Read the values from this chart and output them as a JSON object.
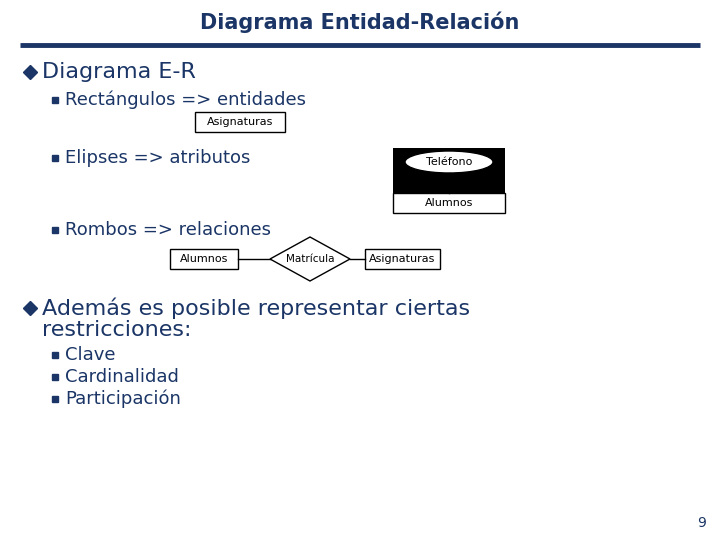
{
  "title": "Diagrama Entidad-Relación",
  "title_color": "#1a3566",
  "bg_color": "#ffffff",
  "rule_color": "#1a3566",
  "text_color": "#1a3566",
  "bullet1": "Diagrama E-R",
  "sub1": "Rectángulos => entidades",
  "sub2": "Elipses => atributos",
  "sub3": "Rombos => relaciones",
  "bullet2_line1": "Además es posible representar ciertas",
  "bullet2_line2": "restricciones:",
  "sub_items": [
    "Clave",
    "Cardinalidad",
    "Participación"
  ],
  "rect1_label": "Asignaturas",
  "ellipse_label": "Teléfono",
  "rect2_label": "Alumnos",
  "er_alumnos": "Alumnos",
  "er_matricula": "Matrícula",
  "er_asignaturas": "Asignaturas",
  "page_number": "9",
  "title_fontsize": 15,
  "bullet1_fontsize": 16,
  "sub_fontsize": 13,
  "subitem_fontsize": 13
}
